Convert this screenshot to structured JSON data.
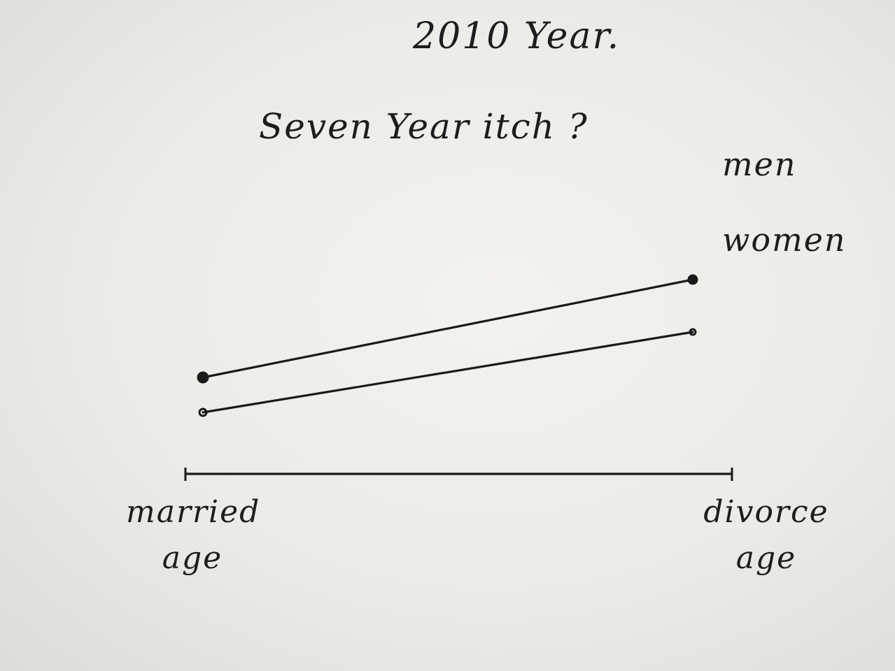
{
  "chart_data": {
    "type": "line",
    "title": "2010 Year.",
    "subtitle": "Seven Year itch ?",
    "categories": [
      "married age",
      "divorce age"
    ],
    "series": [
      {
        "name": "men",
        "values": [
          2.2,
          5.0
        ],
        "color": "#1b1919"
      },
      {
        "name": "women",
        "values": [
          1.2,
          3.5
        ],
        "color": "#1b1919"
      }
    ],
    "x_axis": {
      "left_label_lines": [
        "married",
        "age"
      ],
      "right_label_lines": [
        "divorce",
        "age"
      ]
    },
    "ylim": [
      0,
      10
    ],
    "grid": false,
    "legend": "right-of-line-ends"
  }
}
